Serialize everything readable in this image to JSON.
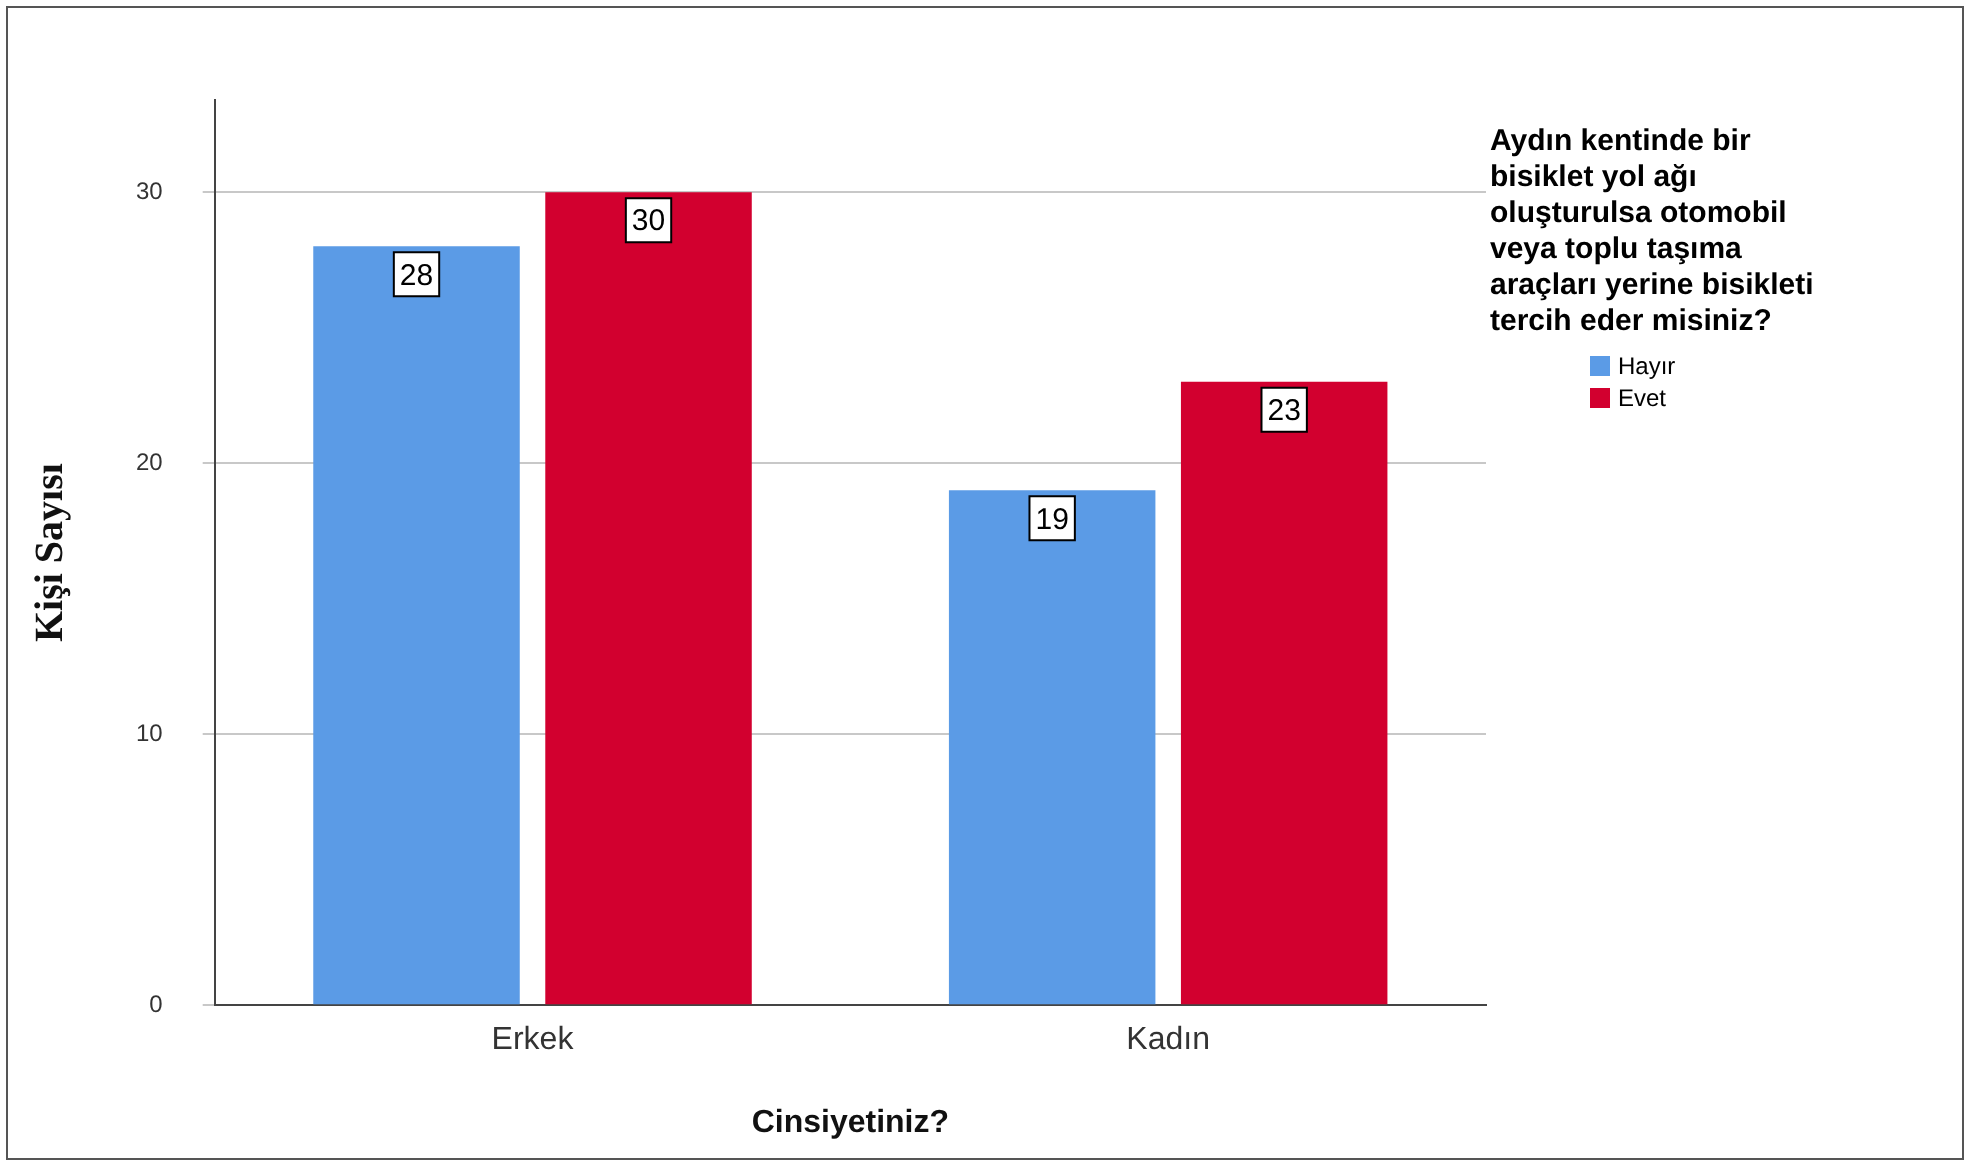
{
  "chart_data": {
    "type": "bar",
    "categories": [
      "Erkek",
      "Kadın"
    ],
    "series": [
      {
        "name": "Hayır",
        "color": "#5b9be6",
        "values": [
          28,
          19
        ]
      },
      {
        "name": "Evet",
        "color": "#d2002f",
        "values": [
          30,
          23
        ]
      }
    ],
    "xlabel": "Cinsiyetiniz?",
    "ylabel": "Kişi Sayısı",
    "legend_title": "Aydın kentinde bir bisiklet yol ağı oluşturulsa otomobil veya toplu taşıma araçları yerine bisikleti tercih eder misiniz?",
    "ylim": [
      0,
      33.4
    ],
    "yticks": [
      0,
      10,
      20,
      30
    ],
    "grid": "y",
    "legend": "right",
    "data_labels": true
  }
}
